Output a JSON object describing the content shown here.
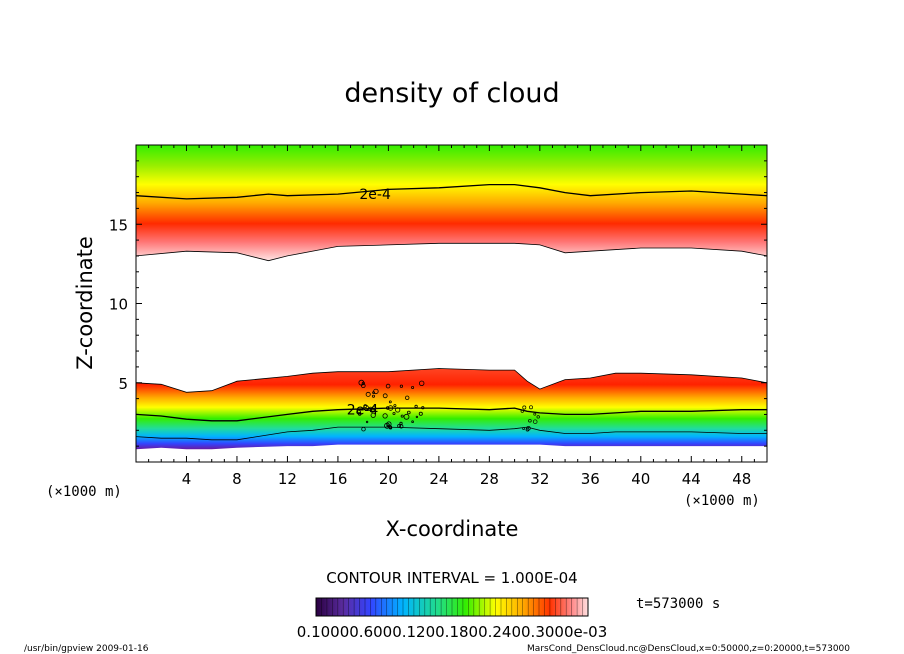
{
  "chart_data": {
    "type": "heatmap",
    "title": "density of cloud",
    "xlabel": "X-coordinate",
    "ylabel": "Z-coordinate",
    "x_unit": "(×1000 m)",
    "y_unit": "(×1000 m)",
    "xlim": [
      0,
      50
    ],
    "ylim": [
      0,
      20
    ],
    "x_ticks": [
      4,
      8,
      12,
      16,
      20,
      24,
      28,
      32,
      36,
      40,
      44,
      48
    ],
    "y_ticks": [
      5,
      10,
      15
    ],
    "contour_labels": [
      "2e-4",
      "2e-4"
    ],
    "contour_interval_text": "CONTOUR INTERVAL = 1.000E-04",
    "colorbar_labels_text": "0.10000.6000.1200.1800.2400.3000e-03",
    "colorbar_values": [
      0.1,
      0.06,
      0.12,
      0.18,
      0.24,
      0.3
    ],
    "colormap": [
      "#2a0040",
      "#5a2ca0",
      "#3344ff",
      "#00b4ff",
      "#22dd88",
      "#33ee00",
      "#ffff00",
      "#ffaa00",
      "#ff3300",
      "#ff8888",
      "#ffe0e0"
    ],
    "upper_band": {
      "x": [
        0,
        4,
        8,
        10.5,
        12,
        16,
        20,
        24,
        28,
        30,
        32,
        34,
        36,
        40,
        44,
        48,
        50
      ],
      "contour_2e4": [
        16.8,
        16.6,
        16.7,
        16.9,
        16.8,
        16.9,
        17.2,
        17.3,
        17.5,
        17.5,
        17.3,
        17.0,
        16.8,
        17.0,
        17.1,
        16.9,
        16.8
      ],
      "lower_edge": [
        13.0,
        13.3,
        13.2,
        12.7,
        13.0,
        13.6,
        13.7,
        13.8,
        13.8,
        13.8,
        13.7,
        13.2,
        13.3,
        13.5,
        13.5,
        13.3,
        13.0
      ]
    },
    "lower_band": {
      "x": [
        0,
        2,
        4,
        6,
        8,
        12,
        14,
        16,
        20,
        24,
        28,
        30,
        31,
        32,
        34,
        36,
        38,
        40,
        44,
        48,
        50
      ],
      "upper_edge": [
        5.0,
        4.9,
        4.4,
        4.5,
        5.1,
        5.4,
        5.6,
        5.7,
        5.7,
        5.9,
        5.8,
        5.8,
        5.1,
        4.6,
        5.2,
        5.3,
        5.6,
        5.6,
        5.5,
        5.3,
        5.0
      ],
      "contour_2e4": [
        3.0,
        2.9,
        2.7,
        2.6,
        2.6,
        3.0,
        3.2,
        3.3,
        3.4,
        3.4,
        3.3,
        3.4,
        3.2,
        3.1,
        3.0,
        3.0,
        3.1,
        3.2,
        3.2,
        3.3,
        3.3
      ],
      "contour_low": [
        1.6,
        1.5,
        1.5,
        1.4,
        1.4,
        1.9,
        2.0,
        2.2,
        2.2,
        2.1,
        2.0,
        2.1,
        2.2,
        2.0,
        1.8,
        1.8,
        1.9,
        1.9,
        1.9,
        1.8,
        1.8
      ],
      "bottom_edge": [
        0.8,
        0.9,
        0.8,
        0.8,
        0.9,
        1.0,
        1.0,
        1.1,
        1.1,
        1.1,
        1.1,
        1.1,
        1.1,
        1.1,
        1.0,
        1.0,
        1.0,
        1.0,
        1.0,
        1.0,
        1.0
      ]
    }
  },
  "footer": {
    "time_label": "t=573000 s",
    "program": "/usr/bin/gpview  2009-01-16",
    "source": "MarsCond_DensCloud.nc@DensCloud,x=0:50000,z=0:20000,t=573000"
  }
}
